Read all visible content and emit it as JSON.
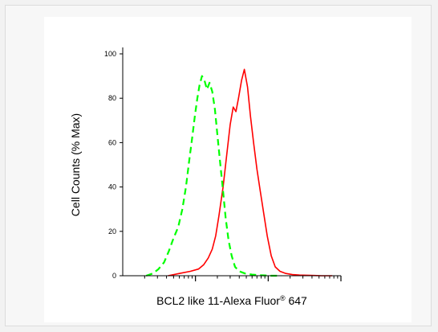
{
  "chart_data": {
    "type": "line",
    "title": "",
    "xlabel_prefix": "BCL2 like 11-Alexa Fluor",
    "xlabel_sup": "®",
    "xlabel_suffix": " 647",
    "ylabel": "Cell Counts (% Max)",
    "x_scale": "log",
    "xlim": [
      1,
      1000
    ],
    "ylim": [
      0,
      100
    ],
    "yticks": [
      0,
      20,
      40,
      60,
      80,
      100
    ],
    "grid": false,
    "legend": "none",
    "series": [
      {
        "color": "#ff0000",
        "style": "solid",
        "x": [
          4.2,
          6.0,
          8.5,
          11,
          13,
          15,
          17,
          19,
          21,
          24,
          27,
          30,
          33,
          36,
          39,
          43,
          47,
          52,
          57,
          63,
          70,
          78,
          87,
          97,
          110,
          125,
          145,
          175,
          215,
          270,
          340,
          430,
          540,
          640,
          760
        ],
        "y": [
          0,
          1,
          2,
          3,
          5,
          8,
          12,
          18,
          27,
          40,
          55,
          68,
          76,
          74,
          80,
          88,
          93,
          85,
          72,
          60,
          48,
          38,
          28,
          18,
          9,
          4,
          2,
          1,
          0.5,
          0.3,
          0.2,
          0.1,
          0,
          0,
          0
        ]
      },
      {
        "color": "#00ff00",
        "style": "dashed",
        "x": [
          2.1,
          2.6,
          3.1,
          3.7,
          4.3,
          5.0,
          5.8,
          6.6,
          7.4,
          8.2,
          9.0,
          9.8,
          10.6,
          11.4,
          12.3,
          13.3,
          14.4,
          15.6,
          17.0,
          18.5,
          20.2,
          22.0,
          24.0,
          26.0,
          28.5,
          31.5,
          35.0,
          40.0,
          48.0,
          60.0,
          80.0,
          110.0,
          150.0
        ],
        "y": [
          0,
          1,
          3,
          6,
          11,
          17,
          22,
          30,
          40,
          52,
          62,
          72,
          80,
          86,
          90,
          88,
          84,
          87,
          83,
          75,
          62,
          50,
          38,
          26,
          16,
          9,
          4,
          2,
          1,
          0.5,
          0.2,
          0,
          0
        ]
      }
    ]
  }
}
